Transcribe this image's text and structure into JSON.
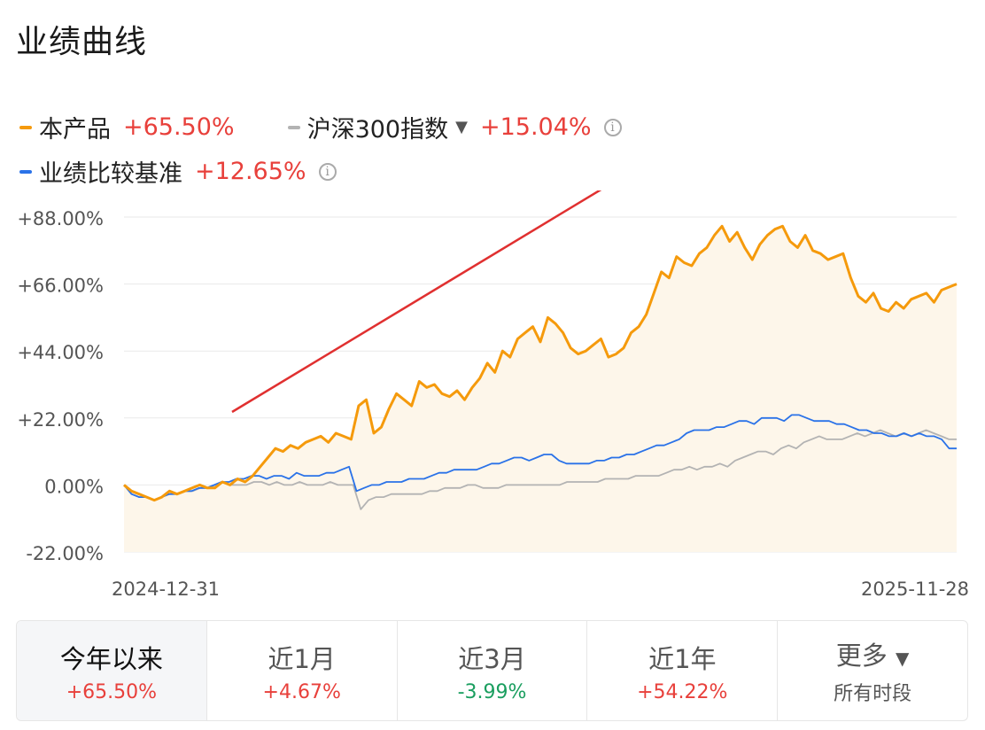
{
  "title": "业绩曲线",
  "legend": {
    "product": {
      "name": "本产品",
      "value": "+65.50%",
      "color": "#f59a0c"
    },
    "index": {
      "name": "沪深300指数",
      "value": "+15.04%",
      "color": "#b3b3b3",
      "dropdown_icon": "triangle-down-icon",
      "info_icon": "info-icon"
    },
    "benchmark": {
      "name": "业绩比较基准",
      "value": "+12.65%",
      "color": "#2a72e8",
      "info_icon": "info-icon"
    }
  },
  "tabs": [
    {
      "label": "今年以来",
      "value": "+65.50%",
      "active": true,
      "sign": "pos"
    },
    {
      "label": "近1月",
      "value": "+4.67%",
      "active": false,
      "sign": "pos"
    },
    {
      "label": "近3月",
      "value": "-3.99%",
      "active": false,
      "sign": "neg"
    },
    {
      "label": "近1年",
      "value": "+54.22%",
      "active": false,
      "sign": "pos"
    },
    {
      "label": "更多",
      "value": "所有时段",
      "active": false,
      "sign": "none"
    }
  ],
  "chart_data": {
    "type": "line",
    "x_start_label": "2024-12-31",
    "x_end_label": "2025-11-28",
    "ylim": [
      -22,
      88
    ],
    "yticks": [
      "+88.00%",
      "+66.00%",
      "+44.00%",
      "+22.00%",
      "0.00%",
      "-22.00%"
    ],
    "ytick_values": [
      88,
      66,
      44,
      22,
      0,
      -22
    ],
    "grid": true,
    "series": [
      {
        "name": "本产品",
        "color": "#f59a0c",
        "fill": true,
        "values": [
          0,
          -2,
          -3,
          -4,
          -5,
          -4,
          -2,
          -3,
          -2,
          -1,
          0,
          -1,
          -1,
          1,
          0,
          2,
          1,
          3,
          6,
          9,
          12,
          11,
          13,
          12,
          14,
          15,
          16,
          14,
          17,
          16,
          15,
          26,
          28,
          17,
          19,
          25,
          30,
          28,
          26,
          34,
          32,
          33,
          30,
          29,
          31,
          28,
          32,
          35,
          40,
          37,
          44,
          42,
          48,
          50,
          52,
          47,
          55,
          53,
          50,
          45,
          43,
          44,
          46,
          48,
          42,
          43,
          45,
          50,
          52,
          56,
          63,
          70,
          68,
          75,
          73,
          72,
          76,
          78,
          82,
          85,
          80,
          83,
          78,
          74,
          79,
          82,
          84,
          85,
          80,
          78,
          82,
          77,
          76,
          74,
          75,
          76,
          68,
          62,
          60,
          63,
          58,
          57,
          60,
          58,
          61,
          62,
          63,
          60,
          64,
          65,
          66
        ]
      },
      {
        "name": "沪深300指数",
        "color": "#b3b3b3",
        "fill": false,
        "values": [
          0,
          -3,
          -4,
          -4,
          -5,
          -4,
          -3,
          -3,
          -2,
          -2,
          -1,
          -1,
          0,
          1,
          0,
          0,
          0,
          1,
          1,
          0,
          1,
          0,
          0,
          1,
          0,
          0,
          0,
          1,
          0,
          0,
          0,
          -8,
          -5,
          -4,
          -4,
          -3,
          -3,
          -3,
          -3,
          -3,
          -2,
          -2,
          -1,
          -1,
          -1,
          0,
          0,
          -1,
          -1,
          -1,
          0,
          0,
          0,
          0,
          0,
          0,
          0,
          0,
          1,
          1,
          1,
          1,
          1,
          2,
          2,
          2,
          2,
          3,
          3,
          3,
          3,
          4,
          5,
          5,
          6,
          5,
          6,
          6,
          7,
          6,
          8,
          9,
          10,
          11,
          11,
          10,
          12,
          13,
          12,
          14,
          15,
          16,
          15,
          15,
          15,
          16,
          17,
          16,
          17,
          18,
          17,
          16,
          17,
          16,
          17,
          18,
          17,
          16,
          15,
          15
        ]
      },
      {
        "name": "业绩比较基准",
        "color": "#2a72e8",
        "fill": false,
        "values": [
          0,
          -3,
          -4,
          -4,
          -5,
          -4,
          -3,
          -3,
          -2,
          -2,
          -1,
          -1,
          0,
          1,
          1,
          2,
          2,
          3,
          3,
          2,
          3,
          3,
          2,
          4,
          3,
          3,
          3,
          4,
          4,
          5,
          6,
          -2,
          -1,
          0,
          0,
          1,
          1,
          1,
          2,
          2,
          2,
          3,
          4,
          4,
          5,
          5,
          5,
          5,
          6,
          7,
          7,
          8,
          9,
          9,
          8,
          9,
          10,
          10,
          8,
          7,
          7,
          7,
          7,
          8,
          8,
          9,
          9,
          10,
          10,
          11,
          12,
          13,
          13,
          14,
          15,
          17,
          18,
          18,
          18,
          19,
          19,
          20,
          21,
          21,
          20,
          22,
          22,
          22,
          21,
          23,
          23,
          22,
          21,
          21,
          21,
          20,
          20,
          19,
          18,
          18,
          17,
          17,
          16,
          16,
          17,
          16,
          17,
          16,
          16,
          15,
          12,
          12
        ]
      }
    ]
  }
}
